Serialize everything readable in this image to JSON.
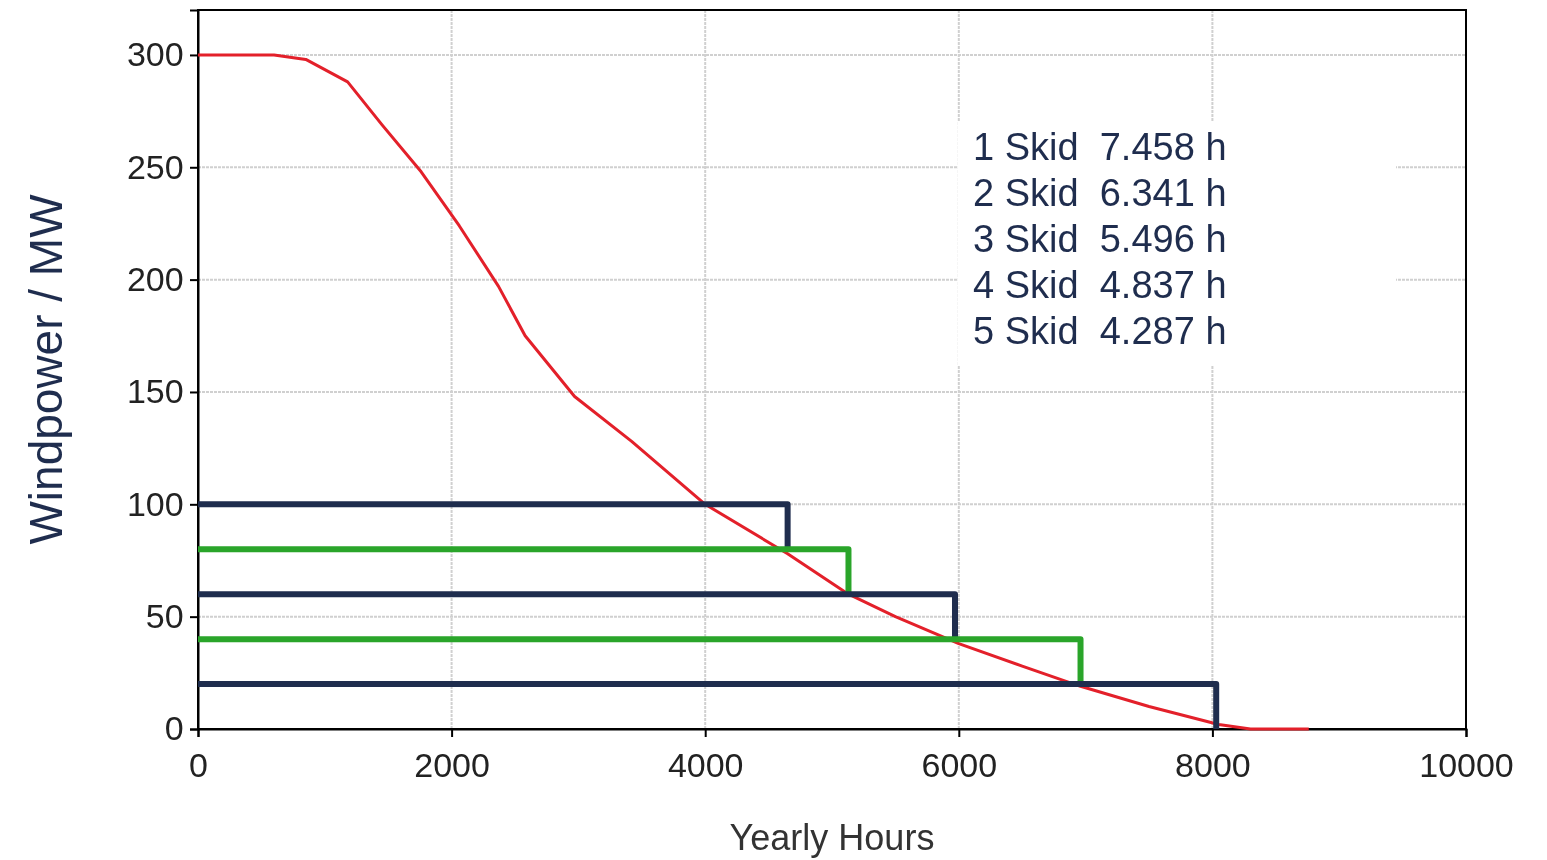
{
  "chart_data": {
    "type": "line",
    "xlabel": "Yearly Hours",
    "ylabel": "Windpower / MW",
    "xlim": [
      0,
      10000
    ],
    "xticks": [
      0,
      2000,
      4000,
      6000,
      8000,
      10000
    ],
    "ylim": [
      0,
      320
    ],
    "yticks": [
      0,
      50,
      100,
      150,
      200,
      250,
      300
    ],
    "grid": true,
    "marker": "none",
    "line_style": "solid",
    "series": [
      {
        "color": "#e3202a",
        "x": [
          0,
          600,
          850,
          1180,
          1450,
          1760,
          2060,
          2370,
          2580,
          2970,
          3420,
          4000,
          4650,
          5130,
          5500,
          6000,
          6500,
          6960,
          7500,
          8050,
          8300,
          8760
        ],
        "values": [
          300,
          300,
          298,
          288,
          269,
          248,
          224,
          197,
          175,
          148,
          128,
          100,
          78,
          60,
          50,
          38,
          28,
          19,
          10,
          2,
          0,
          0
        ]
      },
      {
        "color": "#1f2d4e",
        "x": [
          0,
          4650,
          4650
        ],
        "values": [
          100,
          100,
          80
        ]
      },
      {
        "color": "#2aa52a",
        "x": [
          0,
          5130,
          5130
        ],
        "values": [
          80,
          80,
          60
        ]
      },
      {
        "color": "#1f2d4e",
        "x": [
          0,
          5970,
          5970
        ],
        "values": [
          60,
          60,
          40
        ]
      },
      {
        "color": "#2aa52a",
        "x": [
          0,
          6960,
          6960
        ],
        "values": [
          40,
          40,
          20
        ]
      },
      {
        "color": "#1f2d4e",
        "x": [
          0,
          8030,
          8030
        ],
        "values": [
          20,
          20,
          0
        ]
      }
    ],
    "annotations": [
      "1 Skid  7.458 h",
      "2 Skid  6.341 h",
      "3 Skid  5.496 h",
      "4 Skid  4.837 h",
      "5 Skid  4.287 h"
    ]
  }
}
